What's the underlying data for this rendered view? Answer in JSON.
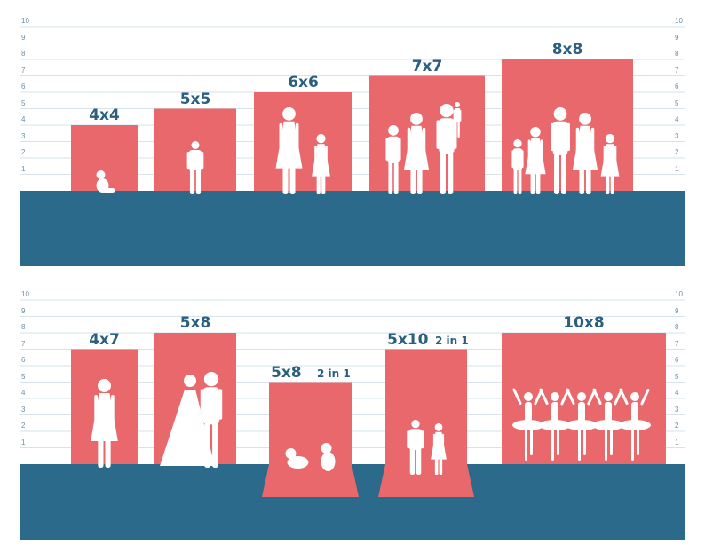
{
  "colors": {
    "backdrop": "#e8686c",
    "floor": "#2b6a8a",
    "grid": "#d6e3ea",
    "label": "#2b5f80",
    "silhouette": "#ffffff"
  },
  "scale": {
    "ticks": [
      "1",
      "2",
      "3",
      "4",
      "5",
      "6",
      "7",
      "8",
      "9",
      "10"
    ]
  },
  "panels": [
    {
      "backdrops": [
        {
          "label": "4x4",
          "badge": "",
          "width_ft": 4,
          "height_ft": 4,
          "figure": "baby-sitting-icon"
        },
        {
          "label": "5x5",
          "badge": "",
          "width_ft": 5,
          "height_ft": 5,
          "figure": "toddler-icon"
        },
        {
          "label": "6x6",
          "badge": "",
          "width_ft": 6,
          "height_ft": 6,
          "figure": "mother-and-child-icon"
        },
        {
          "label": "7x7",
          "badge": "",
          "width_ft": 7,
          "height_ft": 7,
          "figure": "family-of-four-icon"
        },
        {
          "label": "8x8",
          "badge": "",
          "width_ft": 8,
          "height_ft": 8,
          "figure": "large-family-icon"
        }
      ]
    },
    {
      "backdrops": [
        {
          "label": "4x7",
          "badge": "",
          "width_ft": 4,
          "height_ft": 7,
          "figure": "woman-posing-icon"
        },
        {
          "label": "5x8",
          "badge": "",
          "width_ft": 5,
          "height_ft": 8,
          "figure": "wedding-couple-icon"
        },
        {
          "label": "5x8",
          "badge": "2 in 1",
          "width_ft": 5,
          "height_ft": 8,
          "figure": "two-babies-icon"
        },
        {
          "label": "5x10",
          "badge": "2 in 1",
          "width_ft": 5,
          "height_ft": 10,
          "figure": "two-kids-icon"
        },
        {
          "label": "10x8",
          "badge": "",
          "width_ft": 10,
          "height_ft": 8,
          "figure": "ballet-dancers-icon"
        }
      ]
    }
  ]
}
